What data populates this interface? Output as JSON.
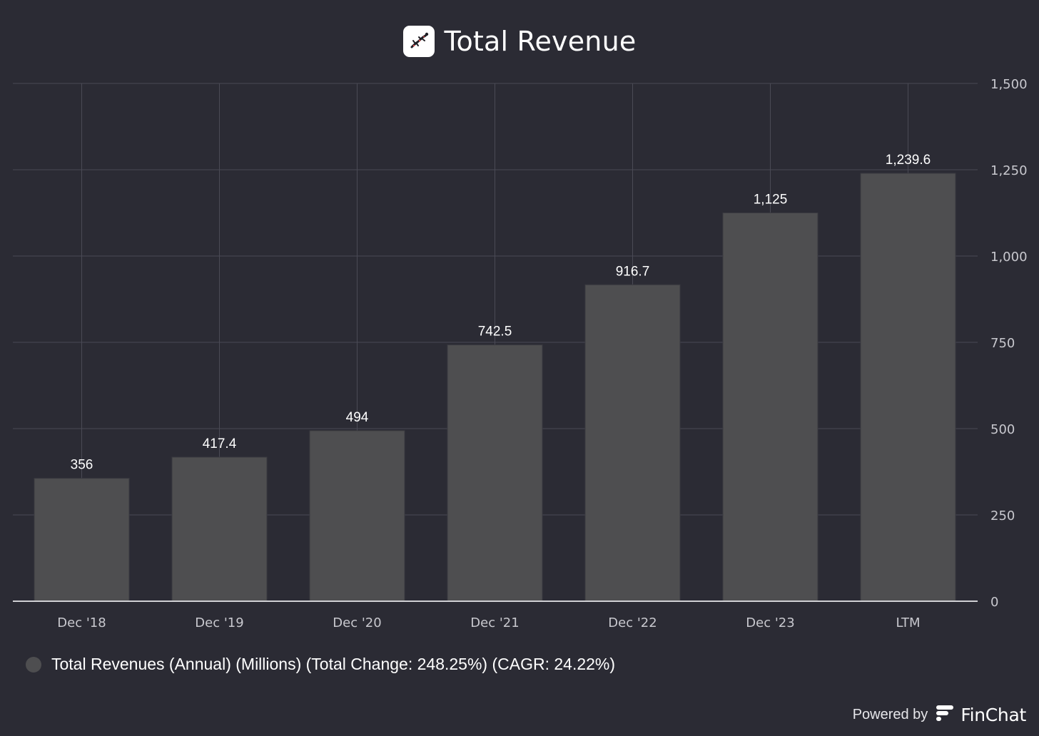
{
  "header": {
    "title": "Total Revenue",
    "logo_icon": "salamander-logo-icon"
  },
  "chart_data": {
    "type": "bar",
    "title": "Total Revenue",
    "categories": [
      "Dec '18",
      "Dec '19",
      "Dec '20",
      "Dec '21",
      "Dec '22",
      "Dec '23",
      "LTM"
    ],
    "series": [
      {
        "name": "Total Revenues (Annual) (Millions) (Total Change: 248.25%) (CAGR: 24.22%)",
        "values": [
          356,
          417.4,
          494,
          742.5,
          916.7,
          1125,
          1239.6
        ],
        "value_labels": [
          "356",
          "417.4",
          "494",
          "742.5",
          "916.7",
          "1,125",
          "1,239.6"
        ]
      }
    ],
    "ylim": [
      0,
      1500
    ],
    "yticks": [
      0,
      250,
      500,
      750,
      1000,
      1250,
      1500
    ],
    "ytick_labels": [
      "0",
      "250",
      "500",
      "750",
      "1,000",
      "1,250",
      "1,500"
    ],
    "y_axis_side": "right",
    "grid": true,
    "legend_position": "bottom-left",
    "colors": {
      "background": "#2b2b34",
      "bar": "#4e4e50",
      "grid": "#4a4a55",
      "axis": "#d0d0d4",
      "text": "#ffffff",
      "tick_text": "#c8c8ce"
    }
  },
  "legend": {
    "label": "Total Revenues (Annual) (Millions) (Total Change: 248.25%) (CAGR: 24.22%)",
    "swatch_color": "#4e4e50"
  },
  "footer": {
    "powered_by": "Powered by",
    "brand": "FinChat",
    "brand_icon": "finchat-logo-icon"
  }
}
